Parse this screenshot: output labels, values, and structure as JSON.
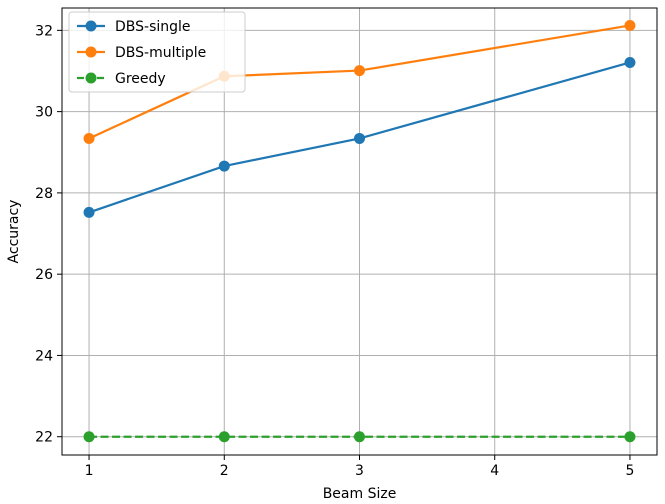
{
  "chart_data": {
    "type": "line",
    "title": "",
    "xlabel": "Beam Size",
    "ylabel": "Accuracy",
    "x": [
      1,
      2,
      3,
      5
    ],
    "xticks": [
      1,
      2,
      3,
      4,
      5
    ],
    "yticks": [
      22,
      24,
      26,
      28,
      30,
      32
    ],
    "xlim": [
      0.8,
      5.2
    ],
    "ylim": [
      21.55,
      32.55
    ],
    "grid": true,
    "legend_position": "top-left",
    "series": [
      {
        "name": "DBS-single",
        "values": [
          27.52,
          28.66,
          29.34,
          31.21
        ],
        "color": "#1f77b4",
        "linestyle": "solid",
        "marker": "circle"
      },
      {
        "name": "DBS-multiple",
        "values": [
          29.34,
          30.87,
          31.01,
          32.12
        ],
        "color": "#ff7f0e",
        "linestyle": "solid",
        "marker": "circle"
      },
      {
        "name": "Greedy",
        "values": [
          22.0,
          22.0,
          22.0,
          22.0
        ],
        "color": "#2ca02c",
        "linestyle": "dashed",
        "marker": "circle"
      }
    ]
  }
}
